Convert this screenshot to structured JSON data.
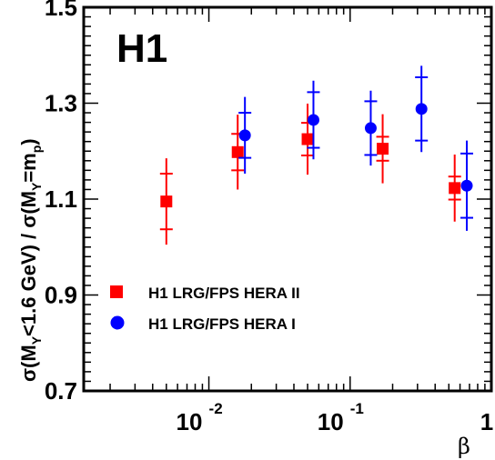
{
  "chart_data": {
    "type": "scatter",
    "tag": "H1",
    "xlabel": "β",
    "ylabel": "σ(M_Y<1.6 GeV) / σ(M_Y=m_p)",
    "ylabel_parts": {
      "p1": "σ(M",
      "s1": "Y",
      "p2": "<1.6 GeV) / σ(M",
      "s2": "Y",
      "p3": "=m",
      "s3": "p",
      "p4": ")"
    },
    "x_scale": "log",
    "xlim": [
      0.0013,
      1.0
    ],
    "ylim": [
      0.7,
      1.5
    ],
    "yticks": [
      "0.7",
      "0.9",
      "1.1",
      "1.3",
      "1.5"
    ],
    "xticks": [
      {
        "base": "10",
        "exp": "-2"
      },
      {
        "base": "10",
        "exp": "-1"
      },
      {
        "base": "1",
        "exp": ""
      }
    ],
    "legend_position": "bottom-left",
    "series": [
      {
        "name": "H1 LRG/FPS HERA II",
        "marker": "square",
        "color": "#ff0000",
        "points": [
          {
            "x": 0.005,
            "y": 1.095,
            "stat": 0.058,
            "tot": 0.09
          },
          {
            "x": 0.016,
            "y": 1.198,
            "stat": 0.038,
            "tot": 0.078
          },
          {
            "x": 0.05,
            "y": 1.225,
            "stat": 0.034,
            "tot": 0.074
          },
          {
            "x": 0.17,
            "y": 1.205,
            "stat": 0.025,
            "tot": 0.072
          },
          {
            "x": 0.55,
            "y": 1.123,
            "stat": 0.024,
            "tot": 0.07
          }
        ]
      },
      {
        "name": "H1 LRG/FPS HERA I",
        "marker": "circle",
        "color": "#0000ff",
        "points": [
          {
            "x": 0.018,
            "y": 1.233,
            "stat": 0.047,
            "tot": 0.08
          },
          {
            "x": 0.055,
            "y": 1.265,
            "stat": 0.058,
            "tot": 0.082
          },
          {
            "x": 0.14,
            "y": 1.248,
            "stat": 0.056,
            "tot": 0.078
          },
          {
            "x": 0.32,
            "y": 1.288,
            "stat": 0.066,
            "tot": 0.09
          },
          {
            "x": 0.67,
            "y": 1.128,
            "stat": 0.067,
            "tot": 0.094
          }
        ]
      }
    ]
  }
}
